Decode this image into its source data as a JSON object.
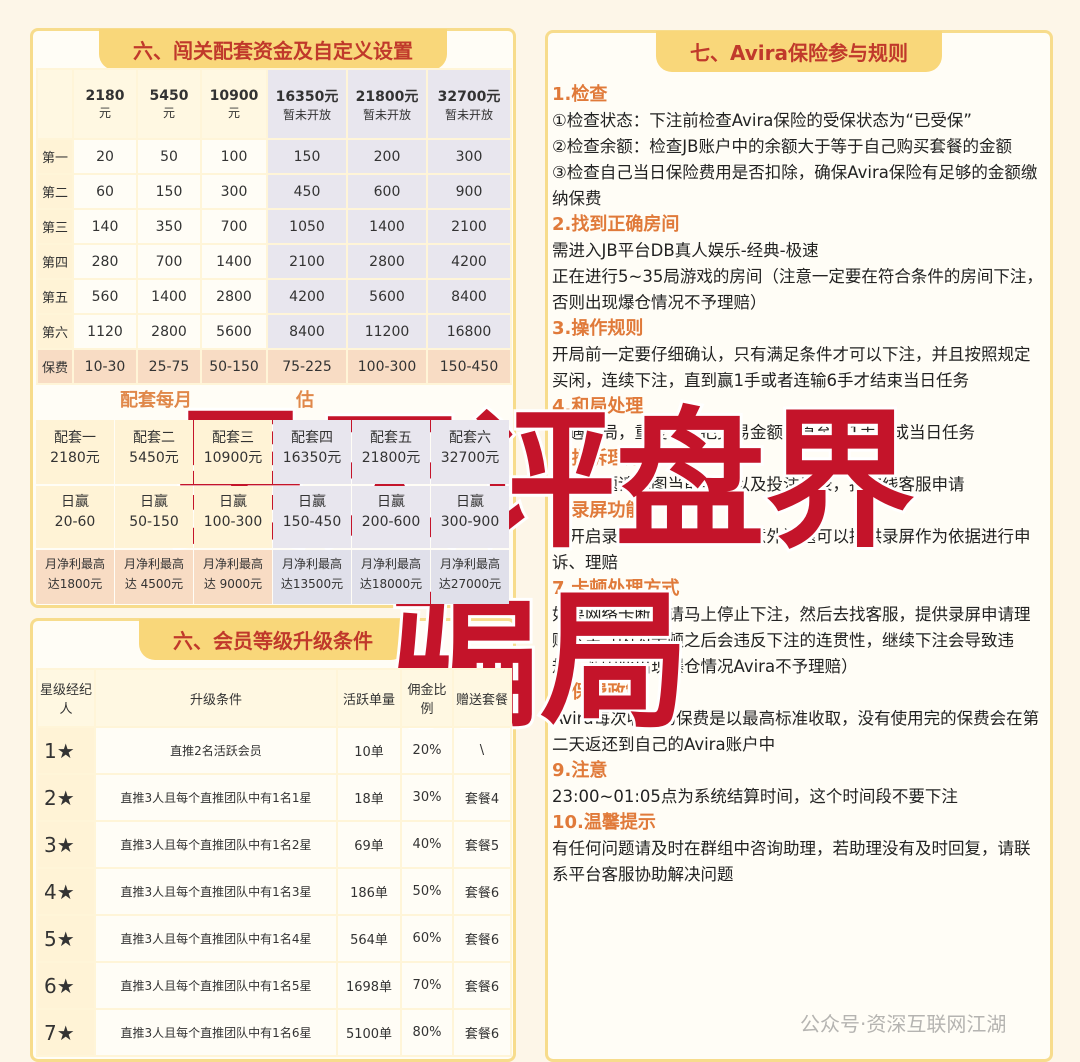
{
  "setup": {
    "title": "六、闯关配套资金及自定义设置",
    "header": [
      {
        "amount": "2180",
        "unit": "元"
      },
      {
        "amount": "5450",
        "unit": "元"
      },
      {
        "amount": "10900",
        "unit": "元"
      },
      {
        "amount": "16350元",
        "unit": "暂未开放"
      },
      {
        "amount": "21800元",
        "unit": "暂未开放"
      },
      {
        "amount": "32700元",
        "unit": "暂未开放"
      }
    ],
    "rows": [
      {
        "label": "第一",
        "values": [
          20,
          50,
          100,
          150,
          200,
          300
        ]
      },
      {
        "label": "第二",
        "values": [
          60,
          150,
          300,
          450,
          600,
          900
        ]
      },
      {
        "label": "第三",
        "values": [
          140,
          350,
          700,
          1050,
          1400,
          2100
        ]
      },
      {
        "label": "第四",
        "values": [
          280,
          700,
          1400,
          2100,
          2800,
          4200
        ]
      },
      {
        "label": "第五",
        "values": [
          560,
          1400,
          2800,
          4200,
          5600,
          8400
        ]
      },
      {
        "label": "第六",
        "values": [
          1120,
          2800,
          5600,
          8400,
          11200,
          16800
        ]
      },
      {
        "label": "保费",
        "values": [
          "10-30",
          "25-75",
          "50-150",
          "75-225",
          "100-300",
          "150-450"
        ]
      }
    ],
    "subtitle_left": "配套每月",
    "subtitle_right": "估",
    "packages": [
      {
        "name": "配套一",
        "amount": "2180元",
        "daily": "日赢",
        "daily_range": "20-60",
        "monthly": "月净利最高",
        "monthly_value": "达1800元"
      },
      {
        "name": "配套二",
        "amount": "5450元",
        "daily": "日赢",
        "daily_range": "50-150",
        "monthly": "月净利最高",
        "monthly_value": "达 4500元"
      },
      {
        "name": "配套三",
        "amount": "10900元",
        "daily": "日赢",
        "daily_range": "100-300",
        "monthly": "月净利最高",
        "monthly_value": "达 9000元"
      },
      {
        "name": "配套四",
        "amount": "16350元",
        "daily": "日赢",
        "daily_range": "150-450",
        "monthly": "月净利最高",
        "monthly_value": "达13500元"
      },
      {
        "name": "配套五",
        "amount": "21800元",
        "daily": "日赢",
        "daily_range": "200-600",
        "monthly": "月净利最高",
        "monthly_value": "达18000元"
      },
      {
        "name": "配套六",
        "amount": "32700元",
        "daily": "日赢",
        "daily_range": "300-900",
        "monthly": "月净利最高",
        "monthly_value": "达27000元"
      }
    ]
  },
  "members": {
    "title": "六、会员等级升级条件",
    "header": [
      "星级经纪人",
      "升级条件",
      "活跃单量",
      "佣金比例",
      "赠送套餐"
    ],
    "rows": [
      [
        "1★",
        "直推2名活跃会员",
        "10单",
        "20%",
        "\\"
      ],
      [
        "2★",
        "直推3人且每个直推团队中有1名1星",
        "18单",
        "30%",
        "套餐4"
      ],
      [
        "3★",
        "直推3人且每个直推团队中有1名2星",
        "69单",
        "40%",
        "套餐5"
      ],
      [
        "4★",
        "直推3人且每个直推团队中有1名3星",
        "186单",
        "50%",
        "套餐6"
      ],
      [
        "5★",
        "直推3人且每个直推团队中有1名4星",
        "564单",
        "60%",
        "套餐6"
      ],
      [
        "6★",
        "直推3人且每个直推团队中有1名5星",
        "1698单",
        "70%",
        "套餐6"
      ],
      [
        "7★",
        "直推3人且每个直推团队中有1名6星",
        "5100单",
        "80%",
        "套餐6"
      ]
    ]
  },
  "rules": {
    "title": "七、Avira保险参与规则",
    "sections": [
      {
        "heading": "1.检查",
        "lines": [
          "①检查状态：下注前检查Avira保险的受保状态为“已受保”",
          "②检查余额：检查JB账户中的余额大于等于自己购买套餐的金额",
          "③检查自己当日保险费用是否扣除，确保Avira保险有足够的金额缴纳保费"
        ]
      },
      {
        "heading": "2.找到正确房间",
        "lines": [
          "需进入JB平台DB真人娱乐-经典-极速",
          "正在进行5~35局游戏的房间（注意一定要在符合条件的房间下注，否则出现爆仓情况不予理赔）"
        ]
      },
      {
        "heading": "3.操作规则",
        "lines": [
          "开局前一定要仔细确认，只有满足条件才可以下注，并且按照规定买闲，连续下注，直到赢1手或者连输6手才结束当日任务"
        ]
      },
      {
        "heading": "4.和局处理",
        "lines": [
          "如遇和局，重复上一把交易金额，直至赢1手完成当日任务"
        ]
      },
      {
        "heading": "5.投诉理赔",
        "lines": [
          "如遇问题请截图当前桌号以及投注记录，找在线客服申请"
        ]
      },
      {
        "heading": "6.录屏功能",
        "lines": [
          "请开启录屏功能，遇到任何意外问题可以提供录屏作为依据进行申诉、理赔"
        ]
      },
      {
        "heading": "7.卡顿处理方式",
        "lines": [
          "如果网络卡断就请马上停止下注，然后去找客服，提供录屏申请理赔本金（因为卡顿之后会违反下注的连贯性，继续下注会导致违规，若因此出现爆仓情况Avira不予理赔）"
        ]
      },
      {
        "heading": "8.保费政策",
        "lines": [
          "Avira每次收取的保费是以最高标准收取，没有使用完的保费会在第二天返还到自己的Avira账户中"
        ]
      },
      {
        "heading": "9.注意",
        "lines": [
          "23:00~01:05点为系统结算时间，这个时间段不要下注"
        ]
      },
      {
        "heading": "10.温馨提示",
        "lines": [
          "有任何问题请及时在群组中咨询助理，若助理没有及时回复，请联系平台客服协助解决问题"
        ]
      }
    ]
  },
  "overlay": {
    "line1": "昊天评盘界",
    "line2": "骗局"
  },
  "watermark": "公众号·资深互联网江湖"
}
